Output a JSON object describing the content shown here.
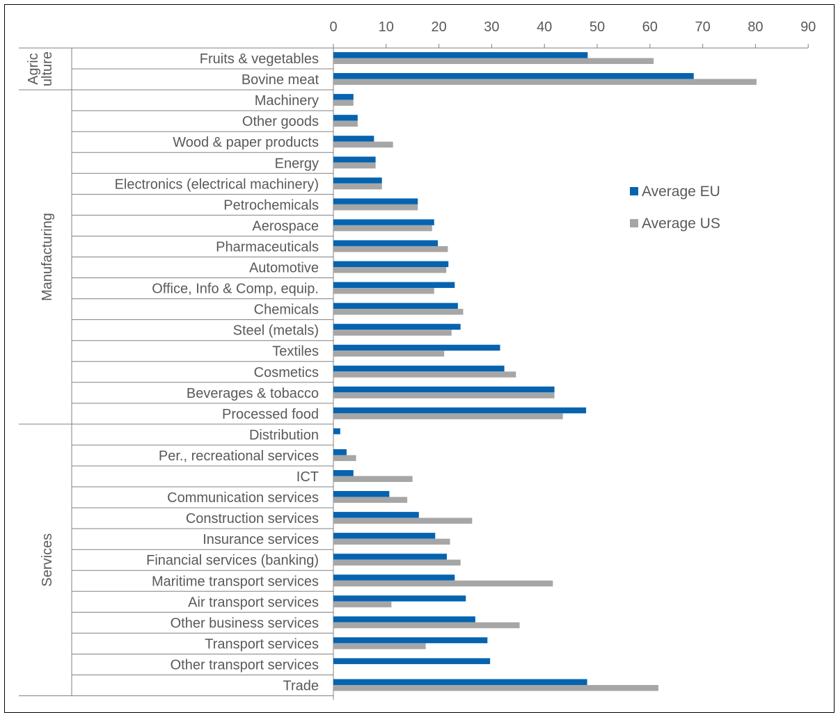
{
  "chart_data": {
    "type": "bar",
    "orientation": "horizontal",
    "title": "",
    "xlabel": "",
    "ylabel": "",
    "xlim": [
      0,
      90
    ],
    "x_ticks": [
      "0",
      "10",
      "20",
      "30",
      "40",
      "50",
      "60",
      "70",
      "80",
      "90"
    ],
    "grid": false,
    "legend_position": "right",
    "colors": {
      "Average EU": "#0563b0",
      "Average US": "#a6a6a6"
    },
    "groups": [
      {
        "name": "Agric ulture",
        "categories": [
          "Fruits & vegetables",
          "Bovine meat"
        ]
      },
      {
        "name": "Manufacturing",
        "categories": [
          "Machinery",
          "Other goods",
          "Wood & paper products",
          "Energy",
          "Electronics (electrical machinery)",
          "Petrochemicals",
          "Aerospace",
          "Pharmaceuticals",
          "Automotive",
          "Office, Info & Comp, equip.",
          "Chemicals",
          "Steel (metals)",
          "Textiles",
          "Cosmetics",
          "Beverages & tobacco",
          "Processed food"
        ]
      },
      {
        "name": "Services",
        "categories": [
          "Distribution",
          "Per., recreational services",
          "ICT",
          "Communication services",
          "Construction services",
          "Insurance services",
          "Financial services (banking)",
          "Maritime transport services",
          "Air transport services",
          "Other business services",
          "Transport services",
          "Other transport services",
          "Trade"
        ]
      }
    ],
    "categories": [
      "Fruits & vegetables",
      "Bovine meat",
      "Machinery",
      "Other goods",
      "Wood & paper products",
      "Energy",
      "Electronics (electrical machinery)",
      "Petrochemicals",
      "Aerospace",
      "Pharmaceuticals",
      "Automotive",
      "Office, Info & Comp, equip.",
      "Chemicals",
      "Steel (metals)",
      "Textiles",
      "Cosmetics",
      "Beverages & tobacco",
      "Processed food",
      "Distribution",
      "Per., recreational services",
      "ICT",
      "Communication services",
      "Construction services",
      "Insurance services",
      "Financial services (banking)",
      "Maritime transport services",
      "Air transport services",
      "Other business services",
      "Transport services",
      "Other transport services",
      "Trade"
    ],
    "series": [
      {
        "name": "Average EU",
        "values": [
          48.2,
          68.3,
          3.8,
          4.6,
          7.7,
          8.0,
          9.2,
          16.0,
          19.1,
          19.8,
          21.8,
          23.0,
          23.6,
          24.1,
          31.6,
          32.4,
          41.9,
          47.9,
          1.3,
          2.5,
          3.8,
          10.6,
          16.2,
          19.3,
          21.5,
          23.0,
          25.1,
          26.9,
          29.2,
          29.7,
          48.1
        ]
      },
      {
        "name": "Average US",
        "values": [
          60.7,
          80.2,
          3.8,
          4.6,
          11.3,
          8.0,
          9.2,
          16.0,
          18.7,
          21.7,
          21.4,
          19.1,
          24.6,
          22.4,
          21.0,
          34.6,
          41.9,
          43.5,
          0,
          4.3,
          15.0,
          14.0,
          26.3,
          22.1,
          24.1,
          41.6,
          11.0,
          35.3,
          17.5,
          0,
          61.6
        ]
      }
    ]
  }
}
